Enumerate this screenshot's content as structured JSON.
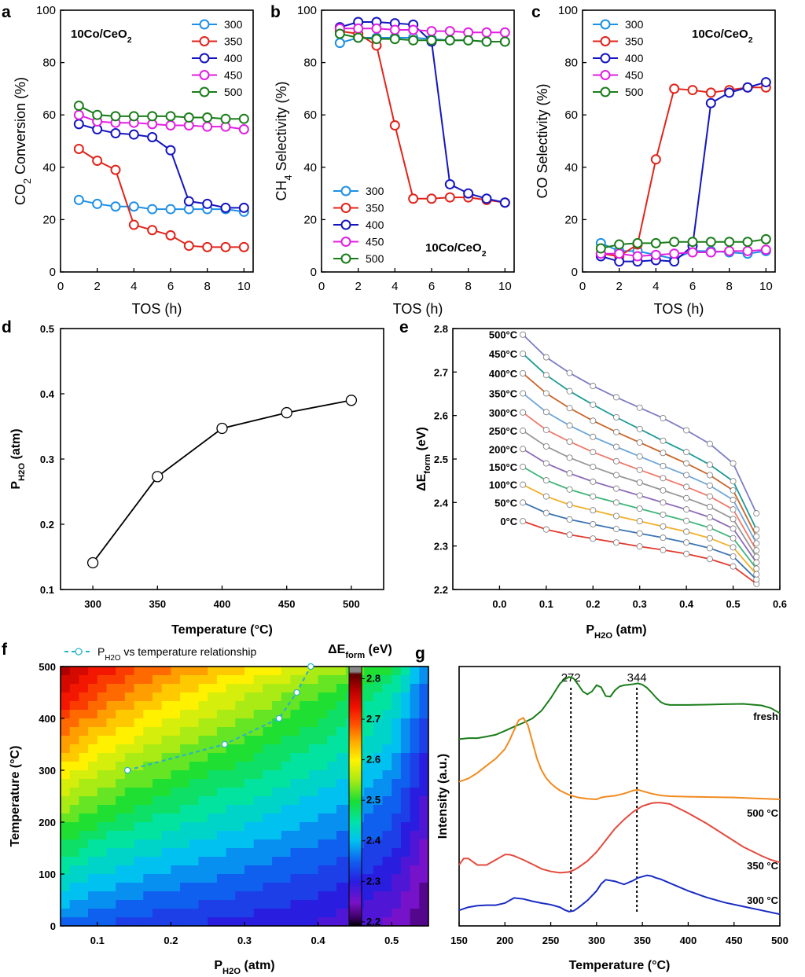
{
  "panel_letters": {
    "a": "a",
    "b": "b",
    "c": "c",
    "d": "d",
    "e": "e",
    "f": "f",
    "g": "g"
  },
  "chart_data": [
    {
      "id": "a",
      "type": "line",
      "xlabel": "TOS (h)",
      "ylabel": "CO2 Conversion (%)",
      "ylabel_parts": [
        "CO",
        "2",
        " Conversion (%)"
      ],
      "xlim": [
        0,
        10.5
      ],
      "ylim": [
        0,
        100
      ],
      "xticks": [
        0,
        2,
        4,
        6,
        8,
        10
      ],
      "yticks": [
        0,
        20,
        40,
        60,
        80,
        100
      ],
      "annotation": {
        "main": "10Co/CeO",
        "sub": "2"
      },
      "legend": "top-right",
      "x": [
        1,
        2,
        3,
        4,
        5,
        6,
        7,
        8,
        9,
        10
      ],
      "series": [
        {
          "name": "300",
          "color": "#1e90e6",
          "values": [
            27.5,
            26,
            25,
            25,
            24,
            24,
            24,
            24,
            24,
            23
          ]
        },
        {
          "name": "350",
          "color": "#e1241b",
          "values": [
            47,
            42.5,
            39,
            18,
            16,
            14,
            10,
            9.5,
            9.5,
            9.5
          ]
        },
        {
          "name": "400",
          "color": "#1515c0",
          "values": [
            56.5,
            54.5,
            53,
            52.5,
            51.5,
            46.5,
            27,
            26,
            24.5,
            24.5
          ]
        },
        {
          "name": "450",
          "color": "#e21ee2",
          "values": [
            60,
            57.5,
            57,
            57,
            56.5,
            56,
            56,
            55.5,
            55.5,
            54.5
          ]
        },
        {
          "name": "500",
          "color": "#1a7d1a",
          "values": [
            63.5,
            60,
            59.5,
            59.5,
            59.5,
            59.5,
            59,
            59,
            58.5,
            58.5
          ]
        }
      ]
    },
    {
      "id": "b",
      "type": "line",
      "xlabel": "TOS (h)",
      "ylabel": "CH4 Selectivity (%)",
      "ylabel_parts": [
        "CH",
        "4",
        " Selectivity (%)"
      ],
      "xlim": [
        0,
        10.5
      ],
      "ylim": [
        0,
        100
      ],
      "xticks": [
        0,
        2,
        4,
        6,
        8,
        10
      ],
      "yticks": [
        0,
        20,
        40,
        60,
        80,
        100
      ],
      "annotation": {
        "main": "10Co/CeO",
        "sub": "2"
      },
      "legend": "bottom-left",
      "x": [
        1,
        2,
        3,
        4,
        5,
        6,
        7,
        8,
        9,
        10
      ],
      "series": [
        {
          "name": "300",
          "color": "#1e90e6",
          "values": [
            87.5,
            89.5,
            89.5,
            89.5,
            89.5,
            89,
            88.5,
            88.5,
            88,
            88
          ]
        },
        {
          "name": "350",
          "color": "#e1241b",
          "values": [
            92,
            91,
            86.5,
            56,
            28,
            28,
            28.5,
            28.5,
            27.5,
            26.5
          ]
        },
        {
          "name": "400",
          "color": "#1515c0",
          "values": [
            93.5,
            95.5,
            95.5,
            95,
            94.5,
            88,
            33.5,
            30,
            28,
            26.5
          ]
        },
        {
          "name": "450",
          "color": "#e21ee2",
          "values": [
            93,
            93,
            93,
            92.5,
            92.5,
            92,
            92,
            91.5,
            91.5,
            91.5
          ]
        },
        {
          "name": "500",
          "color": "#1a7d1a",
          "values": [
            91,
            89.5,
            89,
            89,
            88.5,
            88.5,
            88.5,
            88.5,
            88,
            88
          ]
        }
      ]
    },
    {
      "id": "c",
      "type": "line",
      "xlabel": "TOS (h)",
      "ylabel": "CO Selectivity (%)",
      "ylabel_parts": [
        "CO Selectivity (%)",
        "",
        ""
      ],
      "xlim": [
        0,
        10.5
      ],
      "ylim": [
        0,
        100
      ],
      "xticks": [
        0,
        2,
        4,
        6,
        8,
        10
      ],
      "yticks": [
        0,
        20,
        40,
        60,
        80,
        100
      ],
      "annotation": {
        "main": "10Co/CeO",
        "sub": "2"
      },
      "legend": "top-left",
      "x": [
        1,
        2,
        3,
        4,
        5,
        6,
        7,
        8,
        9,
        10
      ],
      "series": [
        {
          "name": "300",
          "color": "#1e90e6",
          "values": [
            11,
            8,
            8,
            6.5,
            5,
            8,
            8,
            7.5,
            7,
            8
          ]
        },
        {
          "name": "350",
          "color": "#e1241b",
          "values": [
            7,
            6,
            10.5,
            43,
            70,
            69.5,
            68.5,
            69.5,
            70.5,
            70.5
          ]
        },
        {
          "name": "400",
          "color": "#1515c0",
          "values": [
            6,
            4,
            4,
            4.5,
            4,
            10,
            64.5,
            68.5,
            70.5,
            72.5
          ]
        },
        {
          "name": "450",
          "color": "#e21ee2",
          "values": [
            7,
            7,
            6,
            6.5,
            7,
            7.5,
            7.5,
            8,
            8,
            8.5
          ]
        },
        {
          "name": "500",
          "color": "#1a7d1a",
          "values": [
            9,
            10.5,
            11,
            11,
            11.5,
            11.5,
            11.5,
            11.5,
            11.5,
            12.5
          ]
        }
      ]
    },
    {
      "id": "d",
      "type": "line",
      "xlabel": "Temperature (°C)",
      "ylabel_parts": [
        "P",
        "H2O",
        " (atm)"
      ],
      "xlim": [
        275,
        525
      ],
      "ylim": [
        0.1,
        0.5
      ],
      "xticks": [
        300,
        350,
        400,
        450,
        500
      ],
      "yticks": [
        0.1,
        0.2,
        0.3,
        0.4,
        0.5
      ],
      "ytick_labels": [
        "0.1",
        "0.2",
        "0.3",
        "0.4",
        "0.5"
      ],
      "color": "#000000",
      "x": [
        300,
        350,
        400,
        450,
        500
      ],
      "values": [
        0.141,
        0.273,
        0.347,
        0.371,
        0.39
      ]
    },
    {
      "id": "e",
      "type": "line",
      "xlabel_parts": [
        "P",
        "H2O",
        " (atm)"
      ],
      "ylabel_parts": [
        "ΔE",
        "form",
        " (eV)"
      ],
      "xlim": [
        -0.1,
        0.6
      ],
      "ylim": [
        2.2,
        2.8
      ],
      "xticks": [
        0.0,
        0.1,
        0.2,
        0.3,
        0.4,
        0.5,
        0.6
      ],
      "xtick_labels": [
        "0.0",
        "0.1",
        "0.2",
        "0.3",
        "0.4",
        "0.5",
        "0.6"
      ],
      "yticks": [
        2.2,
        2.3,
        2.4,
        2.5,
        2.6,
        2.7,
        2.8
      ],
      "ytick_labels": [
        "2.2",
        "2.3",
        "2.4",
        "2.5",
        "2.6",
        "2.7",
        "2.8"
      ],
      "x": [
        0.05,
        0.1,
        0.15,
        0.2,
        0.25,
        0.3,
        0.35,
        0.4,
        0.45,
        0.5,
        0.55
      ],
      "series": [
        {
          "name": "0°C",
          "color": "#e23a2e",
          "values": [
            2.357,
            2.338,
            2.326,
            2.317,
            2.308,
            2.299,
            2.291,
            2.282,
            2.27,
            2.253,
            2.213
          ]
        },
        {
          "name": "50°C",
          "color": "#3b74b3",
          "values": [
            2.4,
            2.376,
            2.361,
            2.35,
            2.339,
            2.329,
            2.319,
            2.308,
            2.295,
            2.276,
            2.223
          ]
        },
        {
          "name": "100°C",
          "color": "#f0b02a",
          "values": [
            2.441,
            2.414,
            2.395,
            2.382,
            2.369,
            2.357,
            2.345,
            2.333,
            2.318,
            2.297,
            2.235
          ]
        },
        {
          "name": "150°C",
          "color": "#3fb57a",
          "values": [
            2.482,
            2.451,
            2.43,
            2.414,
            2.4,
            2.386,
            2.372,
            2.358,
            2.342,
            2.318,
            2.248
          ]
        },
        {
          "name": "200°C",
          "color": "#8e6bb8",
          "values": [
            2.523,
            2.49,
            2.467,
            2.448,
            2.432,
            2.416,
            2.4,
            2.384,
            2.366,
            2.34,
            2.262
          ]
        },
        {
          "name": "250°C",
          "color": "#999999",
          "values": [
            2.565,
            2.529,
            2.503,
            2.482,
            2.463,
            2.446,
            2.428,
            2.41,
            2.39,
            2.362,
            2.275
          ]
        },
        {
          "name": "300°C",
          "color": "#f07a6a",
          "values": [
            2.607,
            2.567,
            2.54,
            2.516,
            2.495,
            2.475,
            2.456,
            2.436,
            2.414,
            2.384,
            2.29
          ]
        },
        {
          "name": "350°C",
          "color": "#6fa6d8",
          "values": [
            2.651,
            2.608,
            2.577,
            2.551,
            2.528,
            2.506,
            2.484,
            2.463,
            2.439,
            2.406,
            2.306
          ]
        },
        {
          "name": "400°C",
          "color": "#c9652a",
          "values": [
            2.697,
            2.651,
            2.617,
            2.588,
            2.562,
            2.538,
            2.514,
            2.49,
            2.463,
            2.428,
            2.322
          ]
        },
        {
          "name": "450°C",
          "color": "#1d9a96",
          "values": [
            2.742,
            2.693,
            2.656,
            2.625,
            2.596,
            2.569,
            2.542,
            2.516,
            2.487,
            2.449,
            2.338
          ]
        },
        {
          "name": "500°C",
          "color": "#7d7dc6",
          "values": [
            2.786,
            2.734,
            2.698,
            2.668,
            2.642,
            2.618,
            2.594,
            2.566,
            2.535,
            2.49,
            2.375
          ]
        }
      ]
    },
    {
      "id": "f",
      "type": "heatmap",
      "xlabel_parts": [
        "P",
        "H2O",
        " (atm)"
      ],
      "ylabel": "Temperature (°C)",
      "xlim": [
        0.05,
        0.55
      ],
      "ylim": [
        0,
        500
      ],
      "xticks": [
        0.1,
        0.2,
        0.3,
        0.4,
        0.5
      ],
      "xtick_labels": [
        "0.1",
        "0.2",
        "0.3",
        "0.4",
        "0.5"
      ],
      "yticks": [
        0,
        100,
        200,
        300,
        400,
        500
      ],
      "colorbar_title_parts": [
        "ΔE",
        "form",
        " (eV)"
      ],
      "colorbar_range": [
        2.19,
        2.83
      ],
      "colorbar_ticks": [
        2.2,
        2.3,
        2.4,
        2.5,
        2.6,
        2.7,
        2.8
      ],
      "colorbar_tick_labels": [
        "2.2",
        "2.3",
        "2.4",
        "2.5",
        "2.6",
        "2.7",
        "2.8"
      ],
      "legend_label_parts": [
        "P",
        "H2O",
        " vs temperature relationship"
      ],
      "overlay_color": "#27b5c4",
      "overlay_x": [
        0.141,
        0.273,
        0.347,
        0.371,
        0.39
      ],
      "overlay_y": [
        300,
        350,
        400,
        450,
        500
      ]
    },
    {
      "id": "g",
      "type": "line",
      "xlabel": "Temperature (°C)",
      "ylabel": "Intensity (a.u.)",
      "xlim": [
        150,
        500
      ],
      "xticks": [
        150,
        200,
        250,
        300,
        350,
        400,
        450,
        500
      ],
      "yrange": [
        0,
        10
      ],
      "vlines": [
        {
          "x": 272,
          "label": "272"
        },
        {
          "x": 344,
          "label": "344"
        }
      ],
      "series": [
        {
          "name": "fresh",
          "color": "#1a7d1a",
          "x": [
            150,
            160,
            170,
            180,
            190,
            200,
            210,
            220,
            230,
            240,
            250,
            255,
            260,
            265,
            270,
            275,
            280,
            285,
            290,
            295,
            300,
            305,
            310,
            315,
            320,
            325,
            330,
            335,
            340,
            345,
            350,
            355,
            360,
            365,
            370,
            375,
            380,
            390,
            400,
            420,
            440,
            460,
            480,
            490,
            500
          ],
          "values": [
            7.2,
            7.24,
            7.24,
            7.3,
            7.37,
            7.52,
            7.68,
            7.83,
            8.0,
            8.3,
            8.78,
            9.06,
            9.34,
            9.5,
            9.6,
            9.54,
            9.3,
            9.04,
            8.93,
            9.04,
            9.28,
            9.2,
            8.86,
            8.84,
            9.08,
            9.23,
            9.28,
            9.3,
            9.32,
            9.35,
            9.3,
            9.18,
            9.0,
            8.8,
            8.63,
            8.55,
            8.52,
            8.52,
            8.52,
            8.53,
            8.55,
            8.56,
            8.5,
            8.4,
            8.2
          ]
        },
        {
          "name": "500 °C",
          "color": "#f28a1e",
          "x": [
            150,
            160,
            170,
            180,
            190,
            200,
            205,
            210,
            215,
            220,
            225,
            230,
            235,
            240,
            245,
            250,
            255,
            260,
            270,
            280,
            290,
            300,
            305,
            310,
            320,
            330,
            340,
            345,
            350,
            360,
            370,
            380,
            400,
            450,
            500
          ],
          "values": [
            5.56,
            5.68,
            5.9,
            6.18,
            6.45,
            6.82,
            7.15,
            7.55,
            7.93,
            8.02,
            7.75,
            7.1,
            6.45,
            6.0,
            5.7,
            5.5,
            5.35,
            5.22,
            5.05,
            4.95,
            4.9,
            4.88,
            4.95,
            4.98,
            5.02,
            5.1,
            5.22,
            5.25,
            5.2,
            5.1,
            5.03,
            5.0,
            4.98,
            4.95,
            4.88
          ]
        },
        {
          "name": "350 °C",
          "color": "#e44a3e",
          "x": [
            150,
            155,
            160,
            170,
            180,
            190,
            200,
            205,
            210,
            220,
            230,
            240,
            250,
            260,
            270,
            275,
            280,
            290,
            300,
            310,
            320,
            330,
            340,
            350,
            360,
            365,
            370,
            380,
            400,
            420,
            440,
            460,
            480,
            490,
            500
          ],
          "values": [
            2.35,
            2.6,
            2.6,
            2.35,
            2.35,
            2.55,
            2.75,
            2.75,
            2.7,
            2.55,
            2.38,
            2.2,
            2.1,
            2.05,
            2.08,
            2.15,
            2.25,
            2.5,
            2.85,
            3.3,
            3.75,
            4.1,
            4.4,
            4.62,
            4.73,
            4.75,
            4.75,
            4.7,
            4.35,
            3.95,
            3.5,
            3.05,
            2.7,
            2.55,
            2.45
          ]
        },
        {
          "name": "300 °C",
          "color": "#1a2cc4",
          "x": [
            150,
            160,
            170,
            180,
            190,
            200,
            210,
            220,
            230,
            240,
            250,
            260,
            265,
            270,
            275,
            280,
            290,
            300,
            305,
            310,
            320,
            330,
            340,
            345,
            350,
            355,
            360,
            365,
            370,
            380,
            400,
            420,
            440,
            460,
            480,
            500
          ],
          "values": [
            0.6,
            0.72,
            0.78,
            0.8,
            0.8,
            0.88,
            1.08,
            1.04,
            0.95,
            0.88,
            0.82,
            0.72,
            0.62,
            0.55,
            0.58,
            0.7,
            0.98,
            1.35,
            1.62,
            1.78,
            1.72,
            1.6,
            1.75,
            1.85,
            1.9,
            1.95,
            1.92,
            1.85,
            1.8,
            1.65,
            1.35,
            1.1,
            0.9,
            0.75,
            0.6,
            0.45
          ]
        }
      ]
    }
  ]
}
